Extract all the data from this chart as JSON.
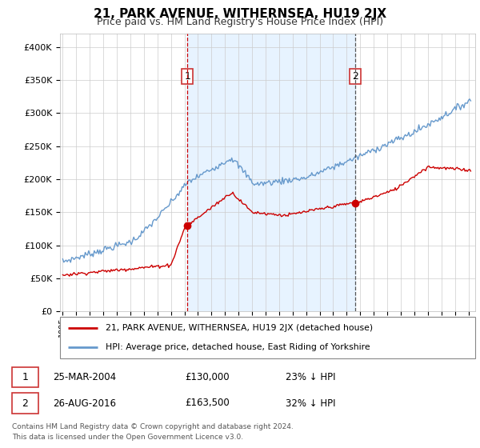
{
  "title": "21, PARK AVENUE, WITHERNSEA, HU19 2JX",
  "subtitle": "Price paid vs. HM Land Registry's House Price Index (HPI)",
  "legend_red": "21, PARK AVENUE, WITHERNSEA, HU19 2JX (detached house)",
  "legend_blue": "HPI: Average price, detached house, East Riding of Yorkshire",
  "footer": "Contains HM Land Registry data © Crown copyright and database right 2024.\nThis data is licensed under the Open Government Licence v3.0.",
  "point1_date": "25-MAR-2004",
  "point1_price": "£130,000",
  "point1_pct": "23% ↓ HPI",
  "point1_x": 2004.23,
  "point1_y": 130000,
  "point2_date": "26-AUG-2016",
  "point2_price": "£163,500",
  "point2_pct": "32% ↓ HPI",
  "point2_x": 2016.65,
  "point2_y": 163500,
  "ylim": [
    0,
    420000
  ],
  "xlim": [
    1994.8,
    2025.5
  ],
  "red_color": "#cc0000",
  "blue_color": "#6699cc",
  "grid_color": "#cccccc",
  "bg_color": "#ffffff",
  "shade_color": "#ddeeff",
  "yticks": [
    0,
    50000,
    100000,
    150000,
    200000,
    250000,
    300000,
    350000,
    400000
  ],
  "ylabels": [
    "£0",
    "£50K",
    "£100K",
    "£150K",
    "£200K",
    "£250K",
    "£300K",
    "£350K",
    "£400K"
  ]
}
